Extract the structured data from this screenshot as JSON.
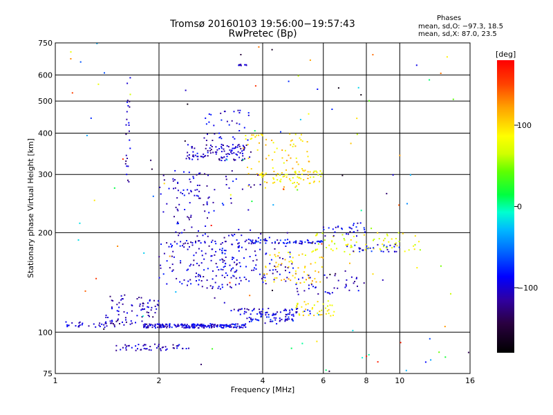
{
  "header": {
    "title": "Tromsø 20160103 19:56:00−19:57:43",
    "subtitle": "RwPretec (Bp)"
  },
  "stats": {
    "title": "Phases",
    "line_o": "mean, sd,O: −97.3, 18.5",
    "line_x": "mean, sd,X:  87.0, 23.5"
  },
  "colorbar": {
    "label": "[deg]",
    "ticks": [
      {
        "value": 100,
        "label": "100"
      },
      {
        "value": 0,
        "label": "0"
      },
      {
        "value": -100,
        "label": "−100"
      }
    ],
    "range": [
      -180,
      180
    ]
  },
  "chart_data": {
    "type": "scatter",
    "title": "Tromsø 20160103 19:56:00−19:57:43",
    "subtitle": "RwPretec (Bp)",
    "xlabel": "Frequency [MHz]",
    "ylabel": "Stationary phase Virtual Height [km]",
    "x_scale": "log",
    "y_scale": "log",
    "xlim": [
      1,
      16
    ],
    "ylim": [
      75,
      750
    ],
    "x_ticks": [
      {
        "value": 1,
        "label": "1"
      },
      {
        "value": 2,
        "label": "2"
      },
      {
        "value": 4,
        "label": "4"
      },
      {
        "value": 6,
        "label": "6"
      },
      {
        "value": 8,
        "label": "8"
      },
      {
        "value": 10,
        "label": "10"
      },
      {
        "value": 16,
        "label": "16"
      }
    ],
    "y_ticks": [
      {
        "value": 75,
        "label": "75"
      },
      {
        "value": 100,
        "label": "100"
      },
      {
        "value": 200,
        "label": "200"
      },
      {
        "value": 300,
        "label": "300"
      },
      {
        "value": 400,
        "label": "400"
      },
      {
        "value": 500,
        "label": "500"
      },
      {
        "value": 600,
        "label": "600"
      },
      {
        "value": 750,
        "label": "750"
      }
    ],
    "grid": true,
    "colorbar_label": "[deg]",
    "point_clusters": [
      {
        "x": [
          1.05,
          1.2
        ],
        "y": [
          103,
          108
        ],
        "phase": -100,
        "n": 15
      },
      {
        "x": [
          1.25,
          1.5
        ],
        "y": [
          103,
          108
        ],
        "phase": -105,
        "n": 18
      },
      {
        "x": [
          1.4,
          2.0
        ],
        "y": [
          105,
          130
        ],
        "phase": -110,
        "n": 80
      },
      {
        "x": [
          1.8,
          2.6
        ],
        "y": [
          103,
          106
        ],
        "phase": -100,
        "n": 120
      },
      {
        "x": [
          2.6,
          3.6
        ],
        "y": [
          103,
          106
        ],
        "phase": -95,
        "n": 90
      },
      {
        "x": [
          3.6,
          5.0
        ],
        "y": [
          106,
          114
        ],
        "phase": -90,
        "n": 60
      },
      {
        "x": [
          5.0,
          6.5
        ],
        "y": [
          112,
          125
        ],
        "phase": 90,
        "n": 40
      },
      {
        "x": [
          3.2,
          5.5
        ],
        "y": [
          113,
          118
        ],
        "phase": -100,
        "n": 50
      },
      {
        "x": [
          1.5,
          2.5
        ],
        "y": [
          88,
          92
        ],
        "phase": -105,
        "n": 50
      },
      {
        "x": [
          2.2,
          2.8
        ],
        "y": [
          185,
          310
        ],
        "phase": -100,
        "n": 70
      },
      {
        "x": [
          2.4,
          3.7
        ],
        "y": [
          330,
          370
        ],
        "phase": -105,
        "n": 110
      },
      {
        "x": [
          2.7,
          3.7
        ],
        "y": [
          380,
          470
        ],
        "phase": -100,
        "n": 35
      },
      {
        "x": [
          3.5,
          5.5
        ],
        "y": [
          270,
          400
        ],
        "phase": 100,
        "n": 90
      },
      {
        "x": [
          3.8,
          6.0
        ],
        "y": [
          280,
          310
        ],
        "phase": 90,
        "n": 50
      },
      {
        "x": [
          2.0,
          3.5
        ],
        "y": [
          135,
          190
        ],
        "phase": -100,
        "n": 140
      },
      {
        "x": [
          3.0,
          5.0
        ],
        "y": [
          140,
          200
        ],
        "phase": -100,
        "n": 100
      },
      {
        "x": [
          3.5,
          6.0
        ],
        "y": [
          185,
          190
        ],
        "phase": -90,
        "n": 60
      },
      {
        "x": [
          4.0,
          6.0
        ],
        "y": [
          140,
          175
        ],
        "phase": 100,
        "n": 60
      },
      {
        "x": [
          5.5,
          11.5
        ],
        "y": [
          175,
          200
        ],
        "phase": 80,
        "n": 70
      },
      {
        "x": [
          6.0,
          8.0
        ],
        "y": [
          195,
          215
        ],
        "phase": -95,
        "n": 30
      },
      {
        "x": [
          7.0,
          10.0
        ],
        "y": [
          175,
          185
        ],
        "phase": -90,
        "n": 30
      },
      {
        "x": [
          1.6,
          1.65
        ],
        "y": [
          270,
          620
        ],
        "phase": -110,
        "n": 25
      },
      {
        "x": [
          2.0,
          4.0
        ],
        "y": [
          230,
          300
        ],
        "phase": -100,
        "n": 40
      },
      {
        "x": [
          5.0,
          8.0
        ],
        "y": [
          130,
          150
        ],
        "phase": -100,
        "n": 40
      },
      {
        "x": [
          3.4,
          3.6
        ],
        "y": [
          640,
          645
        ],
        "phase": -110,
        "n": 10
      },
      {
        "x": [
          1.1,
          16
        ],
        "y": [
          75,
          750
        ],
        "phase": 0,
        "n": 120
      }
    ]
  }
}
